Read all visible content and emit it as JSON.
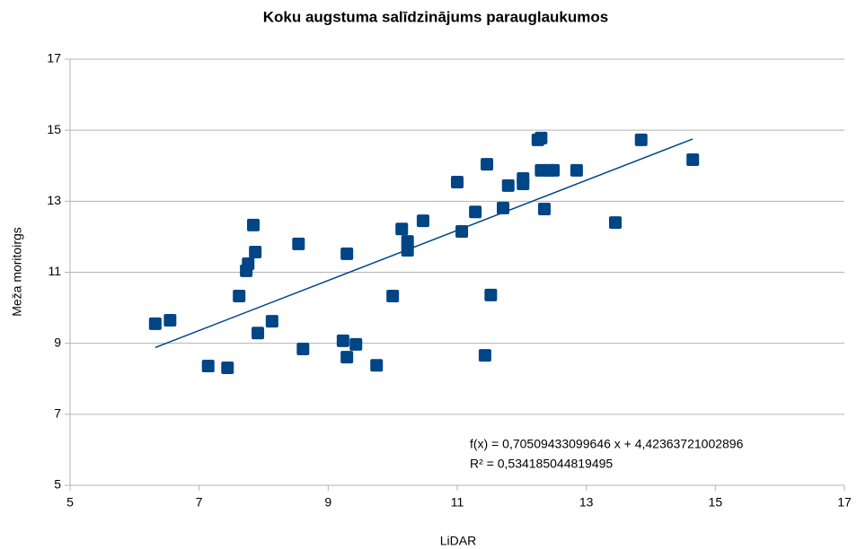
{
  "chart_data": {
    "type": "scatter",
    "title": "Koku augstuma salīdzinājums parauglaukumos",
    "x_label": "LiDAR",
    "y_label": "Meža moritoirgs",
    "color": "#004586",
    "x": [
      6.32,
      6.55,
      7.14,
      7.44,
      7.62,
      7.73,
      7.76,
      7.84,
      7.87,
      7.91,
      8.13,
      8.54,
      8.61,
      9.23,
      9.29,
      9.29,
      9.43,
      9.75,
      10.0,
      10.14,
      10.23,
      10.23,
      10.47,
      11.0,
      11.07,
      11.28,
      11.43,
      11.46,
      11.52,
      11.71,
      11.79,
      12.02,
      12.02,
      12.25,
      12.3,
      12.3,
      12.35,
      12.42,
      12.49,
      12.85,
      13.45,
      13.85,
      14.65
    ],
    "values": [
      9.55,
      9.65,
      8.36,
      8.31,
      10.33,
      11.04,
      11.24,
      12.33,
      11.57,
      9.29,
      9.62,
      11.8,
      8.84,
      9.07,
      11.52,
      8.61,
      8.97,
      8.38,
      10.33,
      12.22,
      11.87,
      11.62,
      12.45,
      13.54,
      12.15,
      12.7,
      8.66,
      14.04,
      10.36,
      12.81,
      13.44,
      13.49,
      13.64,
      14.73,
      14.78,
      13.87,
      12.78,
      13.87,
      13.87,
      13.87,
      12.4,
      14.73,
      14.17
    ],
    "trendline": {
      "slope": 0.70509433099646,
      "intercept": 4.42363721002896
    },
    "annotations": [
      "f(x) = 0,70509433099646 x + 4,42363721002896",
      "R² = 0,534185044819495"
    ],
    "xlim": [
      5,
      17
    ],
    "xticks": [
      5,
      7,
      9,
      11,
      13,
      15,
      17
    ],
    "ylim": [
      5,
      17
    ],
    "yticks": [
      5,
      7,
      9,
      11,
      13,
      15,
      17
    ],
    "grid": true
  }
}
